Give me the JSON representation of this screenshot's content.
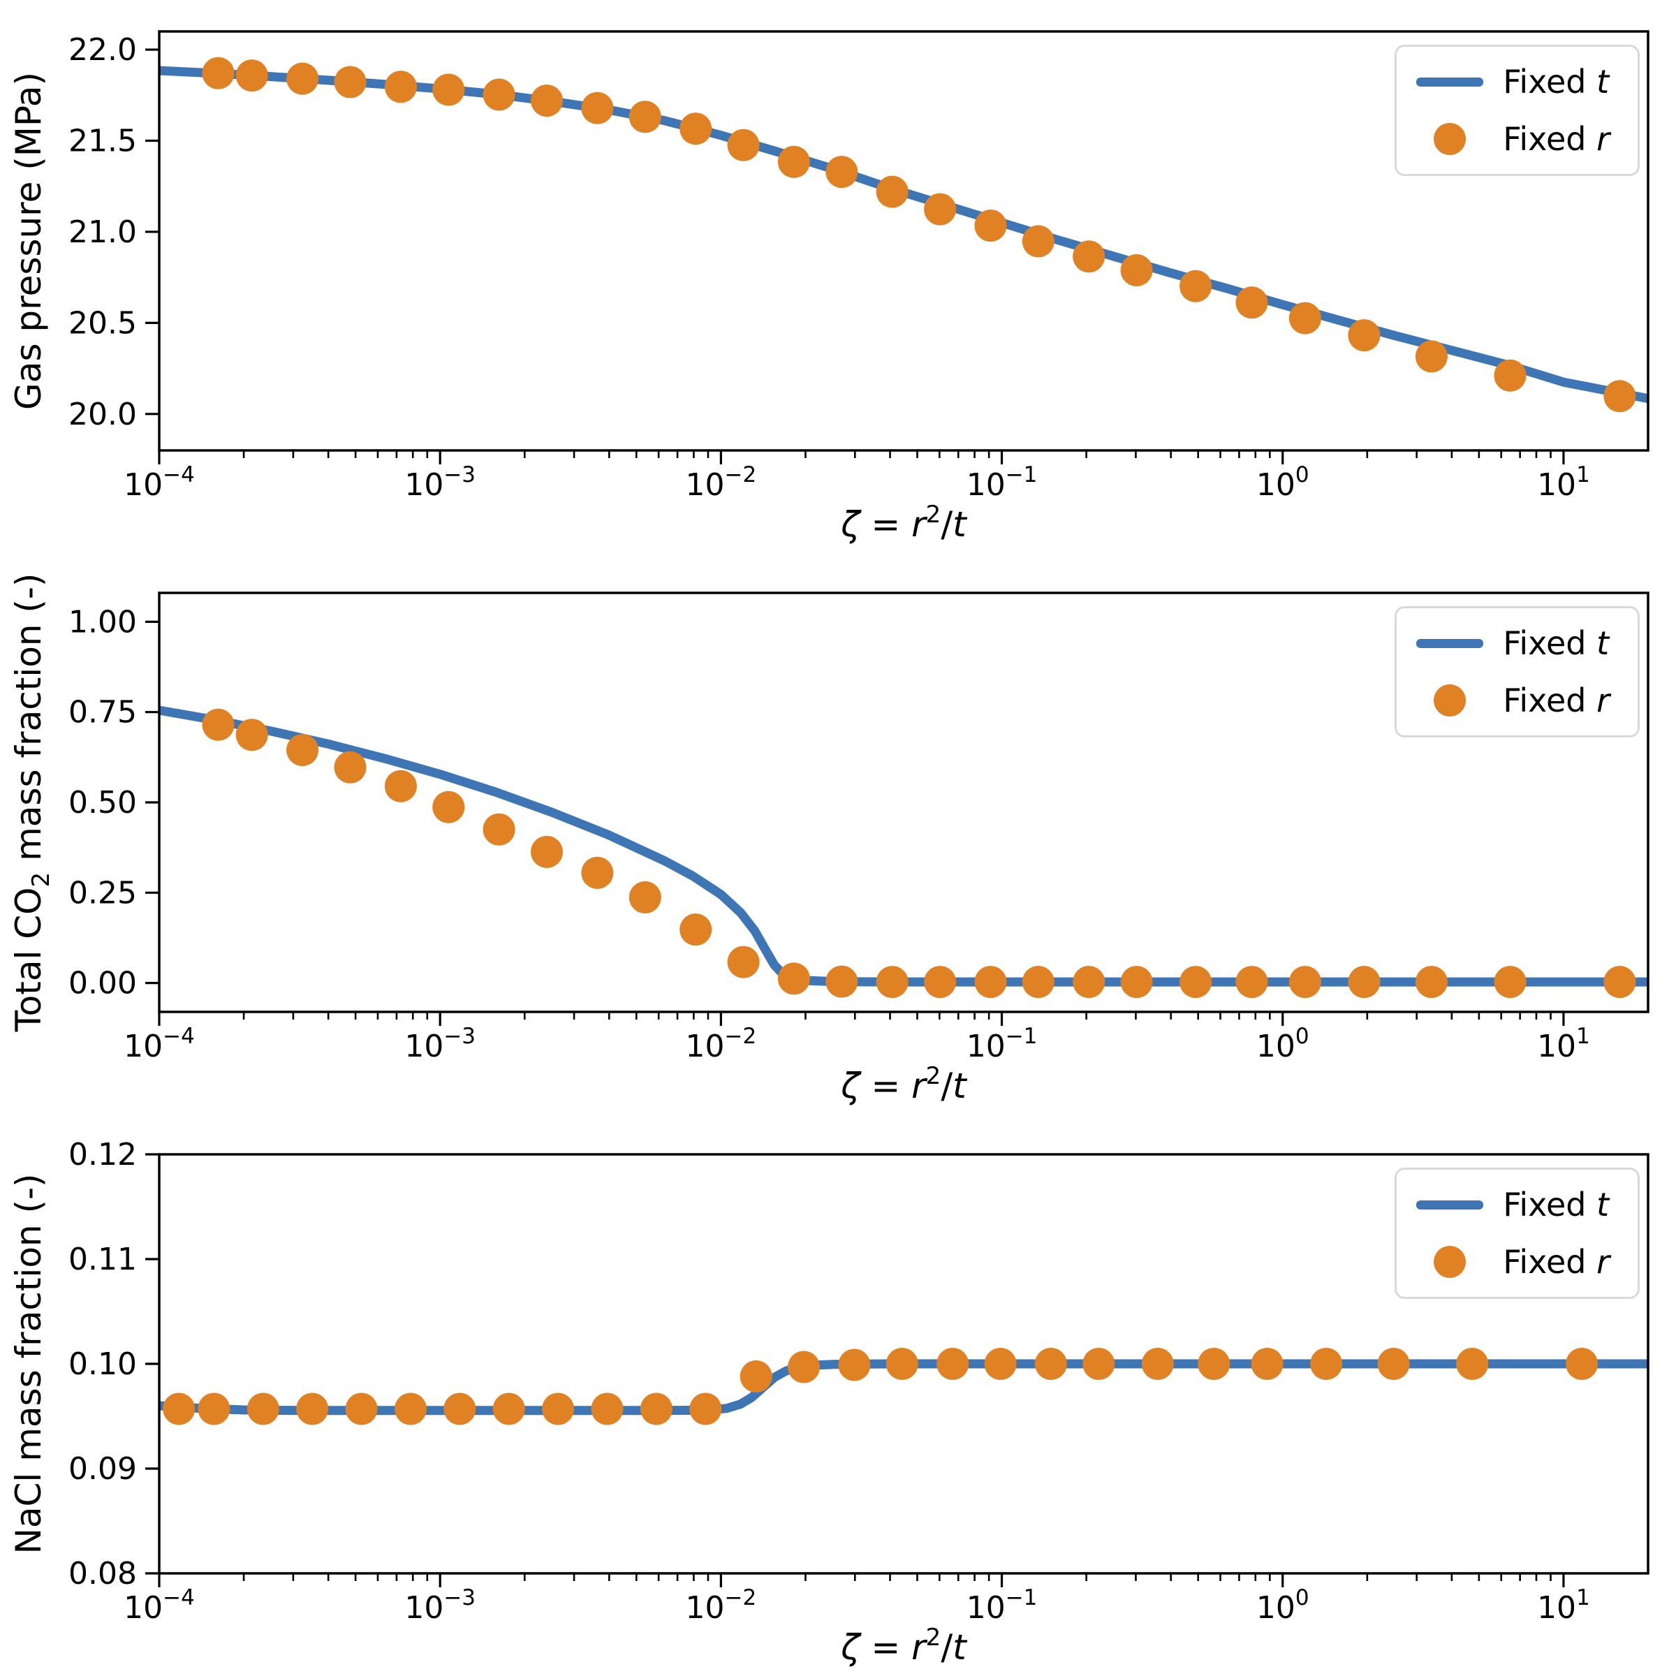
{
  "colors": {
    "line_blue": "#3D75B5",
    "marker_orange": "#E08123",
    "axes_black": "#000000",
    "legend_border": "#D9D9D9",
    "background": "#FFFFFF"
  },
  "legend": {
    "entries": [
      {
        "marker": "line",
        "text": "Fixed ",
        "math": "t",
        "label": "Fixed t"
      },
      {
        "marker": "dot",
        "text": "Fixed ",
        "math": "r",
        "label": "Fixed r"
      }
    ]
  },
  "xlabel": {
    "text": "ζ = r²/t",
    "parts": [
      {
        "t": "ζ",
        "i": true
      },
      {
        "t": " = "
      },
      {
        "t": "r",
        "i": true
      },
      {
        "t": "2",
        "sup": true
      },
      {
        "t": "/"
      },
      {
        "t": "t",
        "i": true
      }
    ]
  },
  "chart_data": [
    {
      "type": "line+scatter",
      "ylabel": "Gas pressure (MPa)",
      "ylabel_parts": [
        {
          "t": "Gas pressure (MPa)"
        }
      ],
      "xlabel": "ζ = r²/t",
      "x_scale": "log",
      "xlim_log": [
        -4,
        1.301
      ],
      "ylim": [
        19.8,
        22.1
      ],
      "xtick_exponents": [
        -4,
        -3,
        -2,
        -1,
        0,
        1
      ],
      "ytick_values": [
        20.0,
        20.5,
        21.0,
        21.5,
        22.0
      ],
      "ytick_labels": [
        "20.0",
        "20.5",
        "21.0",
        "21.5",
        "22.0"
      ],
      "legend_entries": [
        "Fixed t",
        "Fixed r"
      ],
      "series": [
        {
          "name": "Fixed t",
          "style": "line",
          "x_log": [
            -4.0,
            -3.8,
            -3.6,
            -3.4,
            -3.2,
            -3.0,
            -2.8,
            -2.6,
            -2.4,
            -2.2,
            -2.0,
            -1.8,
            -1.6,
            -1.4,
            -1.2,
            -1.0,
            -0.8,
            -0.6,
            -0.4,
            -0.2,
            0.0,
            0.2,
            0.4,
            0.6,
            0.8,
            1.0,
            1.15,
            1.301
          ],
          "y": [
            21.885,
            21.87,
            21.852,
            21.832,
            21.81,
            21.785,
            21.755,
            21.716,
            21.67,
            21.61,
            21.53,
            21.44,
            21.345,
            21.24,
            21.145,
            21.05,
            20.955,
            20.865,
            20.775,
            20.69,
            20.6,
            20.515,
            20.43,
            20.35,
            20.27,
            20.175,
            20.13,
            20.085
          ]
        },
        {
          "name": "Fixed r",
          "style": "scatter",
          "x_log": [
            -3.79,
            -3.67,
            -3.49,
            -3.32,
            -3.14,
            -2.97,
            -2.79,
            -2.62,
            -2.44,
            -2.27,
            -2.09,
            -1.92,
            -1.74,
            -1.57,
            -1.39,
            -1.22,
            -1.04,
            -0.87,
            -0.69,
            -0.52,
            -0.31,
            -0.11,
            0.08,
            0.29,
            0.53,
            0.81,
            1.2
          ],
          "y": [
            21.871,
            21.858,
            21.841,
            21.822,
            21.796,
            21.78,
            21.753,
            21.72,
            21.679,
            21.631,
            21.566,
            21.476,
            21.384,
            21.329,
            21.22,
            21.124,
            21.034,
            20.948,
            20.865,
            20.789,
            20.702,
            20.612,
            20.526,
            20.432,
            20.316,
            20.211,
            20.098
          ]
        }
      ]
    },
    {
      "type": "line+scatter",
      "ylabel": "Total CO2 mass fraction (-)",
      "ylabel_parts": [
        {
          "t": "Total CO"
        },
        {
          "t": "2",
          "sub": true
        },
        {
          "t": " mass fraction (-)"
        }
      ],
      "xlabel": "ζ = r²/t",
      "x_scale": "log",
      "xlim_log": [
        -4,
        1.301
      ],
      "ylim": [
        -0.08,
        1.08
      ],
      "xtick_exponents": [
        -4,
        -3,
        -2,
        -1,
        0,
        1
      ],
      "ytick_values": [
        0.0,
        0.25,
        0.5,
        0.75,
        1.0
      ],
      "ytick_labels": [
        "0.00",
        "0.25",
        "0.50",
        "0.75",
        "1.00"
      ],
      "legend_entries": [
        "Fixed t",
        "Fixed r"
      ],
      "series": [
        {
          "name": "Fixed t",
          "style": "line",
          "x_log": [
            -4.0,
            -3.8,
            -3.6,
            -3.4,
            -3.2,
            -3.0,
            -2.8,
            -2.6,
            -2.4,
            -2.2,
            -2.1,
            -2.0,
            -1.93,
            -1.88,
            -1.84,
            -1.81,
            -1.78,
            -1.74,
            -1.7,
            -1.6,
            -1.4,
            -1.0,
            0.0,
            1.301
          ],
          "y": [
            0.755,
            0.728,
            0.697,
            0.662,
            0.622,
            0.578,
            0.528,
            0.472,
            0.41,
            0.338,
            0.296,
            0.245,
            0.195,
            0.145,
            0.09,
            0.05,
            0.025,
            0.012,
            0.007,
            0.004,
            0.003,
            0.003,
            0.003,
            0.003
          ]
        },
        {
          "name": "Fixed r",
          "style": "scatter",
          "x_log": [
            -3.79,
            -3.67,
            -3.49,
            -3.32,
            -3.14,
            -2.97,
            -2.79,
            -2.62,
            -2.44,
            -2.27,
            -2.09,
            -1.92,
            -1.74,
            -1.57,
            -1.39,
            -1.22,
            -1.04,
            -0.87,
            -0.69,
            -0.52,
            -0.31,
            -0.11,
            0.08,
            0.29,
            0.53,
            0.81,
            1.2
          ],
          "y": [
            0.715,
            0.687,
            0.645,
            0.597,
            0.545,
            0.487,
            0.425,
            0.363,
            0.305,
            0.237,
            0.148,
            0.058,
            0.012,
            0.004,
            0.003,
            0.003,
            0.003,
            0.003,
            0.003,
            0.003,
            0.003,
            0.003,
            0.003,
            0.003,
            0.003,
            0.003,
            0.003
          ]
        }
      ]
    },
    {
      "type": "line+scatter",
      "ylabel": "NaCl mass fraction (-)",
      "ylabel_parts": [
        {
          "t": "NaCl mass fraction (-)"
        }
      ],
      "xlabel": "ζ = r²/t",
      "x_scale": "log",
      "xlim_log": [
        -4,
        1.301
      ],
      "ylim": [
        0.08,
        0.12
      ],
      "xtick_exponents": [
        -4,
        -3,
        -2,
        -1,
        0,
        1
      ],
      "ytick_values": [
        0.08,
        0.09,
        0.1,
        0.11,
        0.12
      ],
      "ytick_labels": [
        "0.08",
        "0.09",
        "0.10",
        "0.11",
        "0.12"
      ],
      "legend_entries": [
        "Fixed t",
        "Fixed r"
      ],
      "series": [
        {
          "name": "Fixed t",
          "style": "line",
          "x_log": [
            -4.0,
            -3.85,
            -3.7,
            -3.5,
            -3.0,
            -2.5,
            -2.2,
            -2.05,
            -1.98,
            -1.93,
            -1.89,
            -1.85,
            -1.81,
            -1.77,
            -1.73,
            -1.68,
            -1.6,
            -1.4,
            -1.0,
            0.0,
            1.301
          ],
          "y": [
            0.096,
            0.09575,
            0.0956,
            0.09555,
            0.09555,
            0.09555,
            0.09555,
            0.09558,
            0.09575,
            0.09615,
            0.0968,
            0.09775,
            0.0987,
            0.0993,
            0.09965,
            0.09985,
            0.09995,
            0.1,
            0.1,
            0.1,
            0.1
          ]
        },
        {
          "name": "Fixed r",
          "style": "scatter",
          "x_log": [
            -3.93,
            -3.805,
            -3.63,
            -3.455,
            -3.28,
            -3.105,
            -2.93,
            -2.755,
            -2.58,
            -2.405,
            -2.23,
            -2.055,
            -1.875,
            -1.705,
            -1.525,
            -1.355,
            -1.175,
            -1.005,
            -0.825,
            -0.655,
            -0.445,
            -0.245,
            -0.055,
            0.155,
            0.395,
            0.675,
            1.065
          ],
          "y": [
            0.0957,
            0.0957,
            0.0957,
            0.0957,
            0.0957,
            0.0957,
            0.0957,
            0.0957,
            0.0957,
            0.0957,
            0.0957,
            0.0957,
            0.0988,
            0.0997,
            0.0999,
            0.1,
            0.1,
            0.1,
            0.1,
            0.1,
            0.1,
            0.1,
            0.1,
            0.1,
            0.1,
            0.1,
            0.1
          ]
        }
      ]
    }
  ]
}
